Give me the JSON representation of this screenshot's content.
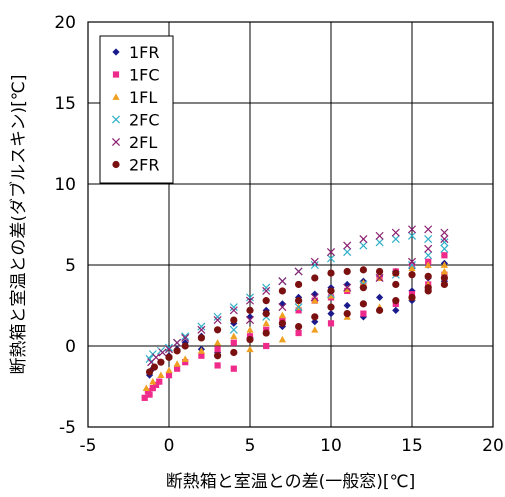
{
  "chart_data": {
    "type": "scatter",
    "xlabel": "断熱箱と室温との差(一般窓)[℃]",
    "ylabel": "断熱箱と室温との差(ダブルスキン)[℃]",
    "xlim": [
      -5,
      20
    ],
    "ylim": [
      -5,
      20
    ],
    "xticks": [
      -5,
      0,
      5,
      10,
      15,
      20
    ],
    "yticks": [
      -5,
      0,
      5,
      10,
      15,
      20
    ],
    "grid": true,
    "legend_position": "top-left",
    "series": [
      {
        "name": "1FR",
        "color": "#1a1a8c",
        "marker": "diamond",
        "points": [
          [
            -1.2,
            -1.8
          ],
          [
            -1.0,
            -1.4
          ],
          [
            -0.5,
            -1.0
          ],
          [
            0,
            -0.6
          ],
          [
            0.5,
            -0.2
          ],
          [
            1,
            0.2
          ],
          [
            2,
            0.6
          ],
          [
            3,
            1.0
          ],
          [
            4,
            1.4
          ],
          [
            5,
            1.8
          ],
          [
            6,
            2.2
          ],
          [
            7,
            2.6
          ],
          [
            8,
            3.0
          ],
          [
            9,
            3.2
          ],
          [
            10,
            3.6
          ],
          [
            11,
            3.8
          ],
          [
            12,
            4.0
          ],
          [
            13,
            4.3
          ],
          [
            14,
            4.6
          ],
          [
            15,
            4.8
          ],
          [
            16,
            5.0
          ],
          [
            17,
            5.1
          ],
          [
            5,
            0.5
          ],
          [
            7,
            1.2
          ],
          [
            9,
            1.5
          ],
          [
            10,
            2.0
          ],
          [
            12,
            1.8
          ],
          [
            14,
            2.2
          ],
          [
            15,
            2.8
          ],
          [
            16,
            3.5
          ],
          [
            17,
            4.0
          ],
          [
            13,
            3.0
          ],
          [
            11,
            2.5
          ],
          [
            3,
            -0.4
          ],
          [
            2,
            -0.2
          ],
          [
            15,
            3.4
          ],
          [
            16,
            4.2
          ]
        ]
      },
      {
        "name": "1FC",
        "color": "#ee2a8a",
        "marker": "square",
        "points": [
          [
            -1.5,
            -3.2
          ],
          [
            -1.3,
            -2.8
          ],
          [
            -1.0,
            -2.6
          ],
          [
            -0.6,
            -2.2
          ],
          [
            0,
            -1.8
          ],
          [
            0.5,
            -1.4
          ],
          [
            1,
            -1.0
          ],
          [
            2,
            -0.6
          ],
          [
            3,
            -0.2
          ],
          [
            4,
            0.2
          ],
          [
            5,
            0.6
          ],
          [
            6,
            1.0
          ],
          [
            7,
            1.6
          ],
          [
            8,
            2.2
          ],
          [
            9,
            2.8
          ],
          [
            10,
            3.0
          ],
          [
            11,
            3.4
          ],
          [
            12,
            3.8
          ],
          [
            13,
            4.2
          ],
          [
            14,
            4.6
          ],
          [
            15,
            5.0
          ],
          [
            16,
            5.2
          ],
          [
            17,
            5.6
          ],
          [
            3,
            -1.2
          ],
          [
            4,
            -1.4
          ],
          [
            6,
            0.0
          ],
          [
            8,
            0.8
          ],
          [
            10,
            1.4
          ],
          [
            12,
            2.0
          ],
          [
            14,
            2.6
          ],
          [
            15,
            3.2
          ],
          [
            16,
            3.8
          ],
          [
            17,
            4.4
          ],
          [
            -1.2,
            -3.0
          ],
          [
            -0.8,
            -2.4
          ]
        ]
      },
      {
        "name": "1FL",
        "color": "#f0a020",
        "marker": "triangle",
        "points": [
          [
            -1.4,
            -2.6
          ],
          [
            -1.0,
            -2.2
          ],
          [
            -0.5,
            -1.8
          ],
          [
            0,
            -1.5
          ],
          [
            0.5,
            -1.1
          ],
          [
            1,
            -0.8
          ],
          [
            2,
            -0.3
          ],
          [
            3,
            0.2
          ],
          [
            4,
            0.6
          ],
          [
            5,
            1.0
          ],
          [
            6,
            1.4
          ],
          [
            7,
            1.9
          ],
          [
            8,
            2.4
          ],
          [
            9,
            2.8
          ],
          [
            10,
            3.1
          ],
          [
            11,
            3.5
          ],
          [
            12,
            3.9
          ],
          [
            13,
            4.2
          ],
          [
            14,
            4.5
          ],
          [
            15,
            4.8
          ],
          [
            16,
            5.0
          ],
          [
            17,
            5.0
          ],
          [
            5,
            -0.2
          ],
          [
            7,
            0.4
          ],
          [
            9,
            1.0
          ],
          [
            11,
            1.8
          ],
          [
            13,
            2.4
          ],
          [
            15,
            3.0
          ],
          [
            16,
            3.8
          ],
          [
            17,
            4.6
          ]
        ]
      },
      {
        "name": "2FC",
        "color": "#30b0c8",
        "marker": "x",
        "points": [
          [
            -1.2,
            -0.8
          ],
          [
            -1.0,
            -0.5
          ],
          [
            -0.5,
            -0.3
          ],
          [
            0,
            -0.1
          ],
          [
            0.5,
            0.2
          ],
          [
            1,
            0.6
          ],
          [
            2,
            1.2
          ],
          [
            3,
            1.8
          ],
          [
            4,
            2.4
          ],
          [
            5,
            3.0
          ],
          [
            6,
            3.6
          ],
          [
            7,
            4.0
          ],
          [
            8,
            4.6
          ],
          [
            9,
            5.0
          ],
          [
            10,
            5.4
          ],
          [
            11,
            5.8
          ],
          [
            12,
            6.2
          ],
          [
            13,
            6.4
          ],
          [
            14,
            6.6
          ],
          [
            15,
            6.8
          ],
          [
            16,
            6.6
          ],
          [
            17,
            6.4
          ],
          [
            4,
            1.0
          ],
          [
            6,
            1.8
          ],
          [
            8,
            2.4
          ],
          [
            10,
            3.2
          ],
          [
            12,
            3.8
          ],
          [
            14,
            4.4
          ],
          [
            15,
            5.0
          ],
          [
            16,
            5.6
          ],
          [
            17,
            6.0
          ]
        ]
      },
      {
        "name": "2FL",
        "color": "#8c2070",
        "marker": "x",
        "points": [
          [
            -1.1,
            -1.0
          ],
          [
            -0.8,
            -0.7
          ],
          [
            -0.4,
            -0.4
          ],
          [
            0,
            -0.2
          ],
          [
            0.5,
            0.2
          ],
          [
            1,
            0.5
          ],
          [
            2,
            1.0
          ],
          [
            3,
            1.6
          ],
          [
            4,
            2.2
          ],
          [
            5,
            2.8
          ],
          [
            6,
            3.4
          ],
          [
            7,
            4.0
          ],
          [
            8,
            4.6
          ],
          [
            9,
            5.2
          ],
          [
            10,
            5.8
          ],
          [
            11,
            6.2
          ],
          [
            12,
            6.6
          ],
          [
            13,
            6.8
          ],
          [
            14,
            7.0
          ],
          [
            15,
            7.2
          ],
          [
            16,
            7.2
          ],
          [
            17,
            7.0
          ],
          [
            5,
            1.6
          ],
          [
            7,
            2.4
          ],
          [
            9,
            3.0
          ],
          [
            11,
            3.6
          ],
          [
            13,
            4.2
          ],
          [
            15,
            5.2
          ],
          [
            16,
            6.0
          ],
          [
            17,
            6.6
          ]
        ]
      },
      {
        "name": "2FR",
        "color": "#7a1010",
        "marker": "circle",
        "points": [
          [
            -1.2,
            -1.6
          ],
          [
            -0.9,
            -1.3
          ],
          [
            -0.5,
            -1.0
          ],
          [
            0,
            -0.7
          ],
          [
            0.5,
            -0.3
          ],
          [
            1,
            0.0
          ],
          [
            2,
            0.5
          ],
          [
            3,
            1.0
          ],
          [
            4,
            1.6
          ],
          [
            5,
            2.2
          ],
          [
            6,
            2.8
          ],
          [
            7,
            3.4
          ],
          [
            8,
            3.8
          ],
          [
            9,
            4.2
          ],
          [
            10,
            4.5
          ],
          [
            11,
            4.6
          ],
          [
            12,
            4.7
          ],
          [
            13,
            4.6
          ],
          [
            14,
            4.5
          ],
          [
            15,
            4.4
          ],
          [
            16,
            4.3
          ],
          [
            17,
            4.2
          ],
          [
            5,
            0.4
          ],
          [
            6,
            0.8
          ],
          [
            7,
            1.4
          ],
          [
            8,
            1.2
          ],
          [
            9,
            1.8
          ],
          [
            10,
            2.4
          ],
          [
            11,
            2.0
          ],
          [
            12,
            2.6
          ],
          [
            13,
            2.2
          ],
          [
            14,
            2.8
          ],
          [
            15,
            3.0
          ],
          [
            16,
            3.4
          ],
          [
            17,
            3.8
          ],
          [
            4,
            -0.4
          ],
          [
            3,
            -0.6
          ],
          [
            6,
            2.0
          ],
          [
            8,
            2.8
          ],
          [
            10,
            3.4
          ],
          [
            12,
            3.6
          ],
          [
            14,
            3.8
          ],
          [
            16,
            3.6
          ]
        ]
      }
    ]
  }
}
